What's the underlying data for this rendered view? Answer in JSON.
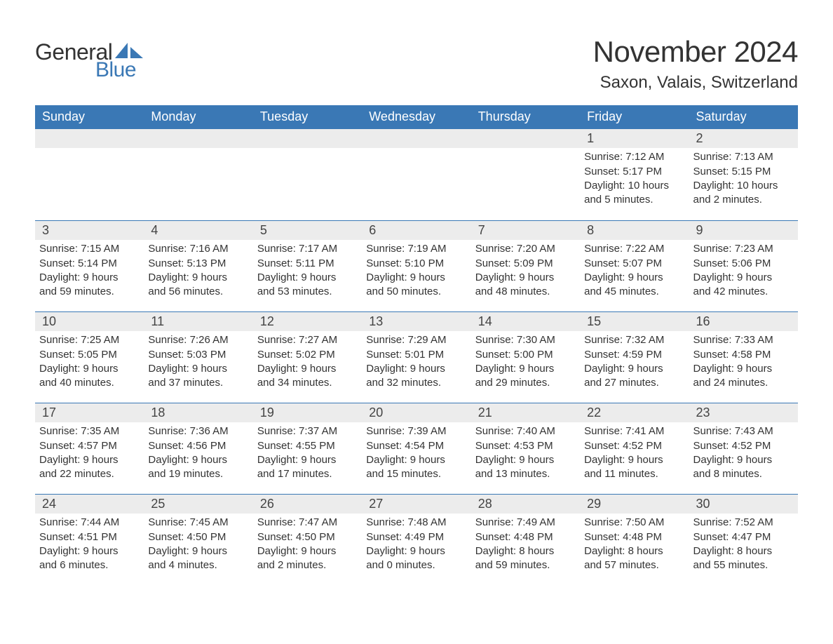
{
  "logo": {
    "word1": "General",
    "word2": "Blue"
  },
  "title": "November 2024",
  "location": "Saxon, Valais, Switzerland",
  "colors": {
    "accent": "#3a78b5",
    "header_bg": "#3a78b5",
    "header_text": "#ffffff",
    "daynum_bg": "#ececec",
    "text": "#333333",
    "background": "#ffffff"
  },
  "weekdays": [
    "Sunday",
    "Monday",
    "Tuesday",
    "Wednesday",
    "Thursday",
    "Friday",
    "Saturday"
  ],
  "weeks": [
    [
      null,
      null,
      null,
      null,
      null,
      {
        "n": "1",
        "sunrise": "Sunrise: 7:12 AM",
        "sunset": "Sunset: 5:17 PM",
        "dl1": "Daylight: 10 hours",
        "dl2": "and 5 minutes."
      },
      {
        "n": "2",
        "sunrise": "Sunrise: 7:13 AM",
        "sunset": "Sunset: 5:15 PM",
        "dl1": "Daylight: 10 hours",
        "dl2": "and 2 minutes."
      }
    ],
    [
      {
        "n": "3",
        "sunrise": "Sunrise: 7:15 AM",
        "sunset": "Sunset: 5:14 PM",
        "dl1": "Daylight: 9 hours",
        "dl2": "and 59 minutes."
      },
      {
        "n": "4",
        "sunrise": "Sunrise: 7:16 AM",
        "sunset": "Sunset: 5:13 PM",
        "dl1": "Daylight: 9 hours",
        "dl2": "and 56 minutes."
      },
      {
        "n": "5",
        "sunrise": "Sunrise: 7:17 AM",
        "sunset": "Sunset: 5:11 PM",
        "dl1": "Daylight: 9 hours",
        "dl2": "and 53 minutes."
      },
      {
        "n": "6",
        "sunrise": "Sunrise: 7:19 AM",
        "sunset": "Sunset: 5:10 PM",
        "dl1": "Daylight: 9 hours",
        "dl2": "and 50 minutes."
      },
      {
        "n": "7",
        "sunrise": "Sunrise: 7:20 AM",
        "sunset": "Sunset: 5:09 PM",
        "dl1": "Daylight: 9 hours",
        "dl2": "and 48 minutes."
      },
      {
        "n": "8",
        "sunrise": "Sunrise: 7:22 AM",
        "sunset": "Sunset: 5:07 PM",
        "dl1": "Daylight: 9 hours",
        "dl2": "and 45 minutes."
      },
      {
        "n": "9",
        "sunrise": "Sunrise: 7:23 AM",
        "sunset": "Sunset: 5:06 PM",
        "dl1": "Daylight: 9 hours",
        "dl2": "and 42 minutes."
      }
    ],
    [
      {
        "n": "10",
        "sunrise": "Sunrise: 7:25 AM",
        "sunset": "Sunset: 5:05 PM",
        "dl1": "Daylight: 9 hours",
        "dl2": "and 40 minutes."
      },
      {
        "n": "11",
        "sunrise": "Sunrise: 7:26 AM",
        "sunset": "Sunset: 5:03 PM",
        "dl1": "Daylight: 9 hours",
        "dl2": "and 37 minutes."
      },
      {
        "n": "12",
        "sunrise": "Sunrise: 7:27 AM",
        "sunset": "Sunset: 5:02 PM",
        "dl1": "Daylight: 9 hours",
        "dl2": "and 34 minutes."
      },
      {
        "n": "13",
        "sunrise": "Sunrise: 7:29 AM",
        "sunset": "Sunset: 5:01 PM",
        "dl1": "Daylight: 9 hours",
        "dl2": "and 32 minutes."
      },
      {
        "n": "14",
        "sunrise": "Sunrise: 7:30 AM",
        "sunset": "Sunset: 5:00 PM",
        "dl1": "Daylight: 9 hours",
        "dl2": "and 29 minutes."
      },
      {
        "n": "15",
        "sunrise": "Sunrise: 7:32 AM",
        "sunset": "Sunset: 4:59 PM",
        "dl1": "Daylight: 9 hours",
        "dl2": "and 27 minutes."
      },
      {
        "n": "16",
        "sunrise": "Sunrise: 7:33 AM",
        "sunset": "Sunset: 4:58 PM",
        "dl1": "Daylight: 9 hours",
        "dl2": "and 24 minutes."
      }
    ],
    [
      {
        "n": "17",
        "sunrise": "Sunrise: 7:35 AM",
        "sunset": "Sunset: 4:57 PM",
        "dl1": "Daylight: 9 hours",
        "dl2": "and 22 minutes."
      },
      {
        "n": "18",
        "sunrise": "Sunrise: 7:36 AM",
        "sunset": "Sunset: 4:56 PM",
        "dl1": "Daylight: 9 hours",
        "dl2": "and 19 minutes."
      },
      {
        "n": "19",
        "sunrise": "Sunrise: 7:37 AM",
        "sunset": "Sunset: 4:55 PM",
        "dl1": "Daylight: 9 hours",
        "dl2": "and 17 minutes."
      },
      {
        "n": "20",
        "sunrise": "Sunrise: 7:39 AM",
        "sunset": "Sunset: 4:54 PM",
        "dl1": "Daylight: 9 hours",
        "dl2": "and 15 minutes."
      },
      {
        "n": "21",
        "sunrise": "Sunrise: 7:40 AM",
        "sunset": "Sunset: 4:53 PM",
        "dl1": "Daylight: 9 hours",
        "dl2": "and 13 minutes."
      },
      {
        "n": "22",
        "sunrise": "Sunrise: 7:41 AM",
        "sunset": "Sunset: 4:52 PM",
        "dl1": "Daylight: 9 hours",
        "dl2": "and 11 minutes."
      },
      {
        "n": "23",
        "sunrise": "Sunrise: 7:43 AM",
        "sunset": "Sunset: 4:52 PM",
        "dl1": "Daylight: 9 hours",
        "dl2": "and 8 minutes."
      }
    ],
    [
      {
        "n": "24",
        "sunrise": "Sunrise: 7:44 AM",
        "sunset": "Sunset: 4:51 PM",
        "dl1": "Daylight: 9 hours",
        "dl2": "and 6 minutes."
      },
      {
        "n": "25",
        "sunrise": "Sunrise: 7:45 AM",
        "sunset": "Sunset: 4:50 PM",
        "dl1": "Daylight: 9 hours",
        "dl2": "and 4 minutes."
      },
      {
        "n": "26",
        "sunrise": "Sunrise: 7:47 AM",
        "sunset": "Sunset: 4:50 PM",
        "dl1": "Daylight: 9 hours",
        "dl2": "and 2 minutes."
      },
      {
        "n": "27",
        "sunrise": "Sunrise: 7:48 AM",
        "sunset": "Sunset: 4:49 PM",
        "dl1": "Daylight: 9 hours",
        "dl2": "and 0 minutes."
      },
      {
        "n": "28",
        "sunrise": "Sunrise: 7:49 AM",
        "sunset": "Sunset: 4:48 PM",
        "dl1": "Daylight: 8 hours",
        "dl2": "and 59 minutes."
      },
      {
        "n": "29",
        "sunrise": "Sunrise: 7:50 AM",
        "sunset": "Sunset: 4:48 PM",
        "dl1": "Daylight: 8 hours",
        "dl2": "and 57 minutes."
      },
      {
        "n": "30",
        "sunrise": "Sunrise: 7:52 AM",
        "sunset": "Sunset: 4:47 PM",
        "dl1": "Daylight: 8 hours",
        "dl2": "and 55 minutes."
      }
    ]
  ]
}
